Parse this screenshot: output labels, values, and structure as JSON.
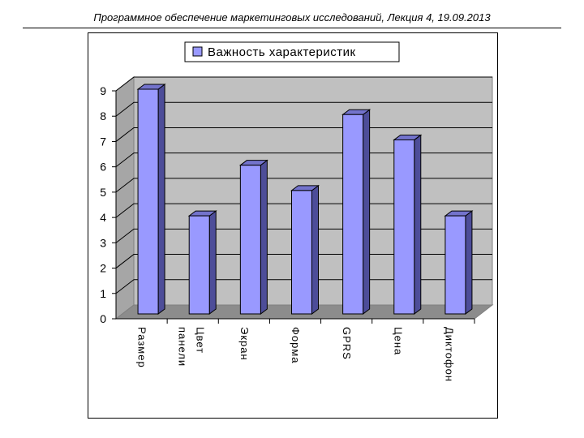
{
  "header": {
    "text": "Программное обеспечение маркетинговых исследований, Лекция 4, 19.09.2013"
  },
  "chart_data": {
    "type": "bar",
    "categories": [
      "Размер",
      "Цвет панели",
      "Экран",
      "Форма",
      "GPRS",
      "Цена",
      "Диктофон"
    ],
    "series": [
      {
        "name": "Важность характеристик",
        "values": [
          9,
          4,
          6,
          5,
          8,
          7,
          4
        ]
      }
    ],
    "title": "",
    "xlabel": "",
    "ylabel": "",
    "ylim": [
      0,
      9
    ],
    "yticks": [
      0,
      1,
      2,
      3,
      4,
      5,
      6,
      7,
      8,
      9
    ],
    "grid": true,
    "legend": "top",
    "style": "3d-column",
    "colors": {
      "bar_front": "#9999ff",
      "bar_side": "#4d4d99",
      "bar_top": "#7373cc",
      "plot_back": "#c0c0c0",
      "plot_wall": "#a6a6a6",
      "plot_floor": "#8c8c8c"
    }
  }
}
